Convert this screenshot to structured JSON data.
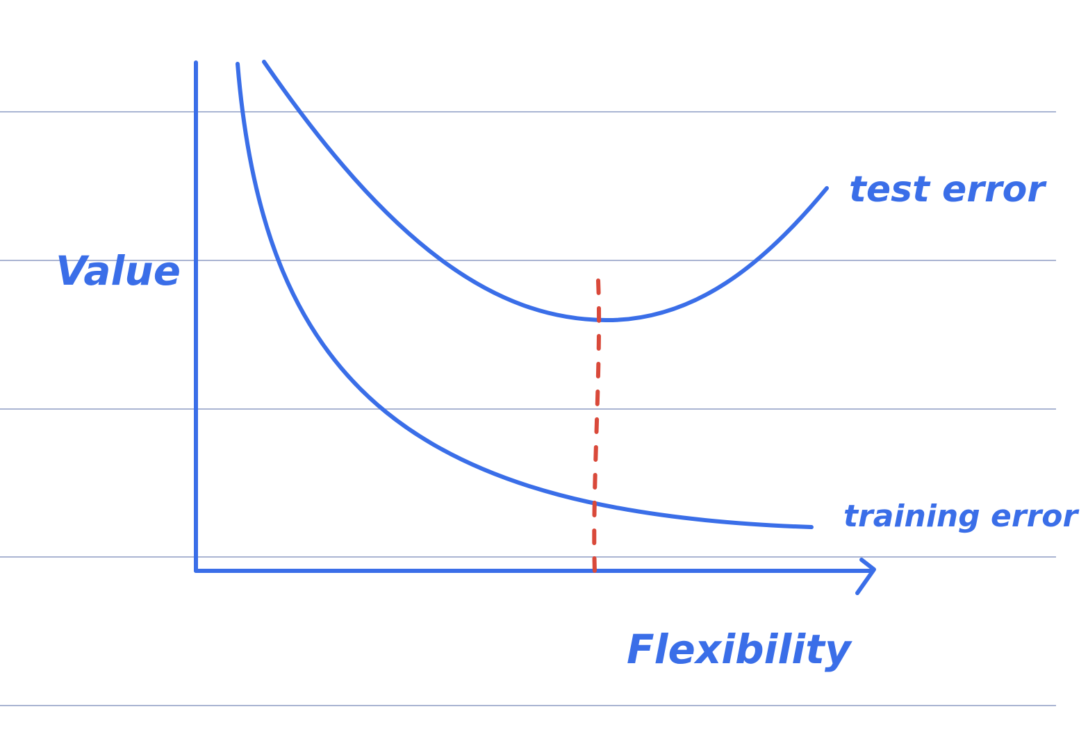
{
  "colors": {
    "ink": "#3a6ee8",
    "marker": "#d9493a",
    "ruled_line": "#a9b4d2",
    "background": "#ffffff"
  },
  "labels": {
    "y_axis": "Value",
    "x_axis": "Flexibility",
    "test_curve": "test error",
    "training_curve": "training error"
  }
}
